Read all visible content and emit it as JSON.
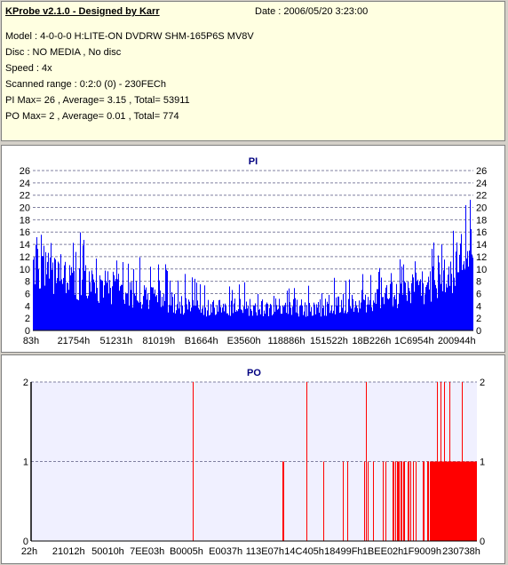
{
  "info": {
    "title": "KProbe v2.1.0 - Designed by Karr",
    "date": "Date : 2006/05/20 3:23:00",
    "model": "Model : 4-0-0-0 H:LITE-ON DVDRW SHM-165P6S MV8V",
    "disc": "Disc : NO MEDIA , No disc",
    "speed": "Speed : 4x",
    "scanned_range": "Scanned range : 0:2:0 (0) - 230FECh",
    "pi_summary": "PI Max= 26 , Average= 3.15 , Total= 53911",
    "po_summary": "PO Max= 2 , Average= 0.01 , Total= 774"
  },
  "colors": {
    "info_background": "#ffffe1",
    "window_background": "#d4d0c8",
    "pi_bars": "#0000ff",
    "po_bars": "#ff0000",
    "plot_background": "#ffffff",
    "po_plot_background": "#f0f0ff",
    "title_color": "#000080",
    "grid": "#8080a0"
  },
  "chart_data": [
    {
      "type": "bar",
      "title": "PI",
      "ylim": [
        0,
        26
      ],
      "yticks": [
        "0",
        "2",
        "4",
        "6",
        "8",
        "10",
        "12",
        "14",
        "16",
        "18",
        "20",
        "22",
        "24",
        "26"
      ],
      "xtick_labels": [
        "83h",
        "21754h",
        "51231h",
        "81019h",
        "B1664h",
        "E3560h",
        "118886h",
        "151522h",
        "18B226h",
        "1C6954h",
        "200944h"
      ],
      "grid": "dashed horizontal",
      "y_axis_both_sides": true,
      "envelope": {
        "x_fraction": [
          0.0,
          0.01,
          0.03,
          0.06,
          0.1,
          0.15,
          0.2,
          0.25,
          0.3,
          0.35,
          0.4,
          0.5,
          0.6,
          0.65,
          0.7,
          0.75,
          0.8,
          0.85,
          0.9,
          0.93,
          0.95,
          0.97,
          0.98,
          0.99,
          1.0
        ],
        "typical": [
          11,
          13,
          10,
          9,
          9,
          8,
          7,
          6,
          5,
          4.5,
          4,
          4,
          4,
          4,
          4.5,
          5,
          6,
          7,
          8,
          9,
          10,
          12,
          15,
          16,
          17
        ],
        "max": [
          16,
          18,
          15,
          14,
          17,
          14,
          13,
          12,
          11,
          9,
          8,
          8,
          8,
          9,
          9,
          10,
          11,
          12,
          14,
          15,
          16,
          18,
          24,
          26,
          20
        ]
      }
    },
    {
      "type": "bar",
      "title": "PO",
      "ylim": [
        0,
        2
      ],
      "yticks": [
        "0",
        "1",
        "2"
      ],
      "xtick_labels": [
        "22h",
        "21012h",
        "50010h",
        "7EE03h",
        "B0005h",
        "E0037h",
        "113E07h",
        "14C405h",
        "18499Fh",
        "1BEE02h",
        "1F9009h",
        "230738h"
      ],
      "grid": "dashed horizontal",
      "y_axis_both_sides": true,
      "values_are": "PO error count per sample, 0, 1 or 2",
      "density": {
        "x_fraction": [
          0.0,
          0.1,
          0.2,
          0.3,
          0.4,
          0.5,
          0.6,
          0.65,
          0.7,
          0.75,
          0.8,
          0.85,
          0.9,
          0.95,
          1.0
        ],
        "rate_of_1": [
          0.005,
          0.008,
          0.01,
          0.012,
          0.01,
          0.01,
          0.015,
          0.02,
          0.03,
          0.05,
          0.08,
          0.12,
          0.2,
          0.35,
          0.45
        ],
        "rate_of_2": [
          0.004,
          0.006,
          0.006,
          0.008,
          0.008,
          0.006,
          0.01,
          0.015,
          0.02,
          0.03,
          0.04,
          0.05,
          0.06,
          0.07,
          0.08
        ]
      }
    }
  ]
}
